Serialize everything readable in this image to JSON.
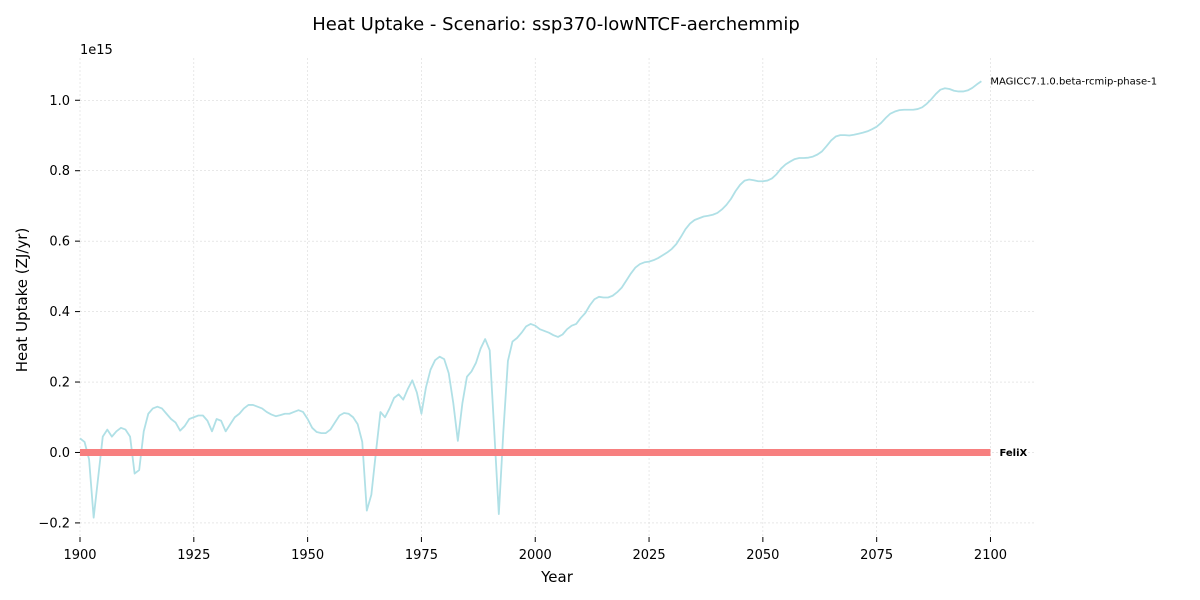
{
  "chart_data": {
    "type": "line",
    "title": "Heat Uptake - Scenario: ssp370-lowNTCF-aerchemmip",
    "xlabel": "Year",
    "ylabel": "Heat Uptake (ZJ/yr)",
    "y_offset_label": "1e15",
    "xlim": [
      1900,
      2110
    ],
    "ylim": [
      -0.24,
      1.12
    ],
    "y_scale_note": "values in units of 1e15",
    "grid": true,
    "x_ticks": [
      1900,
      1925,
      1950,
      1975,
      2000,
      2025,
      2050,
      2075,
      2100
    ],
    "x_tick_labels": [
      "1900",
      "1925",
      "1950",
      "1975",
      "2000",
      "2025",
      "2050",
      "2075",
      "2100"
    ],
    "y_ticks": [
      -0.2,
      0.0,
      0.2,
      0.4,
      0.6,
      0.8,
      1.0
    ],
    "y_tick_labels": [
      "−0.2",
      "0.0",
      "0.2",
      "0.4",
      "0.6",
      "0.8",
      "1.0"
    ],
    "series": [
      {
        "name": "MAGICC7.1.0.beta-rcmip-phase-1",
        "color": "#b0e0e6",
        "label_weight": "normal",
        "points": [
          [
            1900,
            0.04
          ],
          [
            1901,
            0.03
          ],
          [
            1902,
            -0.02
          ],
          [
            1903,
            -0.185
          ],
          [
            1904,
            -0.07
          ],
          [
            1905,
            0.045
          ],
          [
            1906,
            0.065
          ],
          [
            1907,
            0.045
          ],
          [
            1908,
            0.06
          ],
          [
            1909,
            0.07
          ],
          [
            1910,
            0.065
          ],
          [
            1911,
            0.045
          ],
          [
            1912,
            -0.06
          ],
          [
            1913,
            -0.05
          ],
          [
            1914,
            0.06
          ],
          [
            1915,
            0.11
          ],
          [
            1916,
            0.125
          ],
          [
            1917,
            0.13
          ],
          [
            1918,
            0.125
          ],
          [
            1919,
            0.11
          ],
          [
            1920,
            0.095
          ],
          [
            1921,
            0.085
          ],
          [
            1922,
            0.062
          ],
          [
            1923,
            0.075
          ],
          [
            1924,
            0.095
          ],
          [
            1925,
            0.1
          ],
          [
            1926,
            0.105
          ],
          [
            1927,
            0.105
          ],
          [
            1928,
            0.09
          ],
          [
            1929,
            0.06
          ],
          [
            1930,
            0.095
          ],
          [
            1931,
            0.09
          ],
          [
            1932,
            0.06
          ],
          [
            1933,
            0.08
          ],
          [
            1934,
            0.1
          ],
          [
            1935,
            0.11
          ],
          [
            1936,
            0.125
          ],
          [
            1937,
            0.135
          ],
          [
            1938,
            0.135
          ],
          [
            1939,
            0.13
          ],
          [
            1940,
            0.125
          ],
          [
            1941,
            0.115
          ],
          [
            1942,
            0.108
          ],
          [
            1943,
            0.103
          ],
          [
            1944,
            0.106
          ],
          [
            1945,
            0.11
          ],
          [
            1946,
            0.11
          ],
          [
            1947,
            0.115
          ],
          [
            1948,
            0.12
          ],
          [
            1949,
            0.115
          ],
          [
            1950,
            0.095
          ],
          [
            1951,
            0.07
          ],
          [
            1952,
            0.058
          ],
          [
            1953,
            0.055
          ],
          [
            1954,
            0.055
          ],
          [
            1955,
            0.065
          ],
          [
            1956,
            0.085
          ],
          [
            1957,
            0.105
          ],
          [
            1958,
            0.112
          ],
          [
            1959,
            0.11
          ],
          [
            1960,
            0.1
          ],
          [
            1961,
            0.08
          ],
          [
            1962,
            0.03
          ],
          [
            1963,
            -0.165
          ],
          [
            1964,
            -0.12
          ],
          [
            1965,
            0.0
          ],
          [
            1966,
            0.115
          ],
          [
            1967,
            0.1
          ],
          [
            1968,
            0.125
          ],
          [
            1969,
            0.155
          ],
          [
            1970,
            0.165
          ],
          [
            1971,
            0.15
          ],
          [
            1972,
            0.18
          ],
          [
            1973,
            0.205
          ],
          [
            1974,
            0.17
          ],
          [
            1975,
            0.11
          ],
          [
            1976,
            0.185
          ],
          [
            1977,
            0.235
          ],
          [
            1978,
            0.262
          ],
          [
            1979,
            0.272
          ],
          [
            1980,
            0.265
          ],
          [
            1981,
            0.225
          ],
          [
            1982,
            0.14
          ],
          [
            1983,
            0.033
          ],
          [
            1984,
            0.14
          ],
          [
            1985,
            0.215
          ],
          [
            1986,
            0.23
          ],
          [
            1987,
            0.255
          ],
          [
            1988,
            0.295
          ],
          [
            1989,
            0.322
          ],
          [
            1990,
            0.29
          ],
          [
            1991,
            0.06
          ],
          [
            1992,
            -0.175
          ],
          [
            1993,
            0.06
          ],
          [
            1994,
            0.26
          ],
          [
            1995,
            0.315
          ],
          [
            1996,
            0.325
          ],
          [
            1997,
            0.34
          ],
          [
            1998,
            0.358
          ],
          [
            1999,
            0.365
          ],
          [
            2000,
            0.36
          ],
          [
            2001,
            0.35
          ],
          [
            2002,
            0.345
          ],
          [
            2003,
            0.34
          ],
          [
            2004,
            0.333
          ],
          [
            2005,
            0.328
          ],
          [
            2006,
            0.335
          ],
          [
            2007,
            0.35
          ],
          [
            2008,
            0.36
          ],
          [
            2009,
            0.365
          ],
          [
            2010,
            0.382
          ],
          [
            2011,
            0.396
          ],
          [
            2012,
            0.418
          ],
          [
            2013,
            0.435
          ],
          [
            2014,
            0.442
          ],
          [
            2015,
            0.44
          ],
          [
            2016,
            0.44
          ],
          [
            2017,
            0.445
          ],
          [
            2018,
            0.455
          ],
          [
            2019,
            0.468
          ],
          [
            2020,
            0.488
          ],
          [
            2021,
            0.508
          ],
          [
            2022,
            0.525
          ],
          [
            2023,
            0.535
          ],
          [
            2024,
            0.54
          ],
          [
            2025,
            0.542
          ],
          [
            2026,
            0.546
          ],
          [
            2027,
            0.552
          ],
          [
            2028,
            0.56
          ],
          [
            2029,
            0.568
          ],
          [
            2030,
            0.578
          ],
          [
            2031,
            0.592
          ],
          [
            2032,
            0.612
          ],
          [
            2033,
            0.634
          ],
          [
            2034,
            0.65
          ],
          [
            2035,
            0.66
          ],
          [
            2036,
            0.665
          ],
          [
            2037,
            0.67
          ],
          [
            2038,
            0.672
          ],
          [
            2039,
            0.675
          ],
          [
            2040,
            0.68
          ],
          [
            2041,
            0.69
          ],
          [
            2042,
            0.703
          ],
          [
            2043,
            0.72
          ],
          [
            2044,
            0.742
          ],
          [
            2045,
            0.76
          ],
          [
            2046,
            0.772
          ],
          [
            2047,
            0.775
          ],
          [
            2048,
            0.773
          ],
          [
            2049,
            0.77
          ],
          [
            2050,
            0.77
          ],
          [
            2051,
            0.772
          ],
          [
            2052,
            0.778
          ],
          [
            2053,
            0.79
          ],
          [
            2054,
            0.806
          ],
          [
            2055,
            0.818
          ],
          [
            2056,
            0.826
          ],
          [
            2057,
            0.833
          ],
          [
            2058,
            0.836
          ],
          [
            2059,
            0.836
          ],
          [
            2060,
            0.837
          ],
          [
            2061,
            0.84
          ],
          [
            2062,
            0.846
          ],
          [
            2063,
            0.855
          ],
          [
            2064,
            0.87
          ],
          [
            2065,
            0.886
          ],
          [
            2066,
            0.897
          ],
          [
            2067,
            0.901
          ],
          [
            2068,
            0.901
          ],
          [
            2069,
            0.9
          ],
          [
            2070,
            0.902
          ],
          [
            2071,
            0.905
          ],
          [
            2072,
            0.908
          ],
          [
            2073,
            0.912
          ],
          [
            2074,
            0.918
          ],
          [
            2075,
            0.925
          ],
          [
            2076,
            0.936
          ],
          [
            2077,
            0.95
          ],
          [
            2078,
            0.962
          ],
          [
            2079,
            0.968
          ],
          [
            2080,
            0.972
          ],
          [
            2081,
            0.973
          ],
          [
            2082,
            0.973
          ],
          [
            2083,
            0.973
          ],
          [
            2084,
            0.975
          ],
          [
            2085,
            0.98
          ],
          [
            2086,
            0.99
          ],
          [
            2087,
            1.003
          ],
          [
            2088,
            1.018
          ],
          [
            2089,
            1.03
          ],
          [
            2090,
            1.034
          ],
          [
            2091,
            1.032
          ],
          [
            2092,
            1.027
          ],
          [
            2093,
            1.025
          ],
          [
            2094,
            1.025
          ],
          [
            2095,
            1.028
          ],
          [
            2096,
            1.035
          ],
          [
            2097,
            1.045
          ],
          [
            2098,
            1.054
          ]
        ]
      },
      {
        "name": "FeliX",
        "color": "#f77f7f",
        "label_weight": "bold",
        "points": [
          [
            1900,
            0.0
          ],
          [
            2100,
            0.0
          ]
        ]
      }
    ]
  }
}
